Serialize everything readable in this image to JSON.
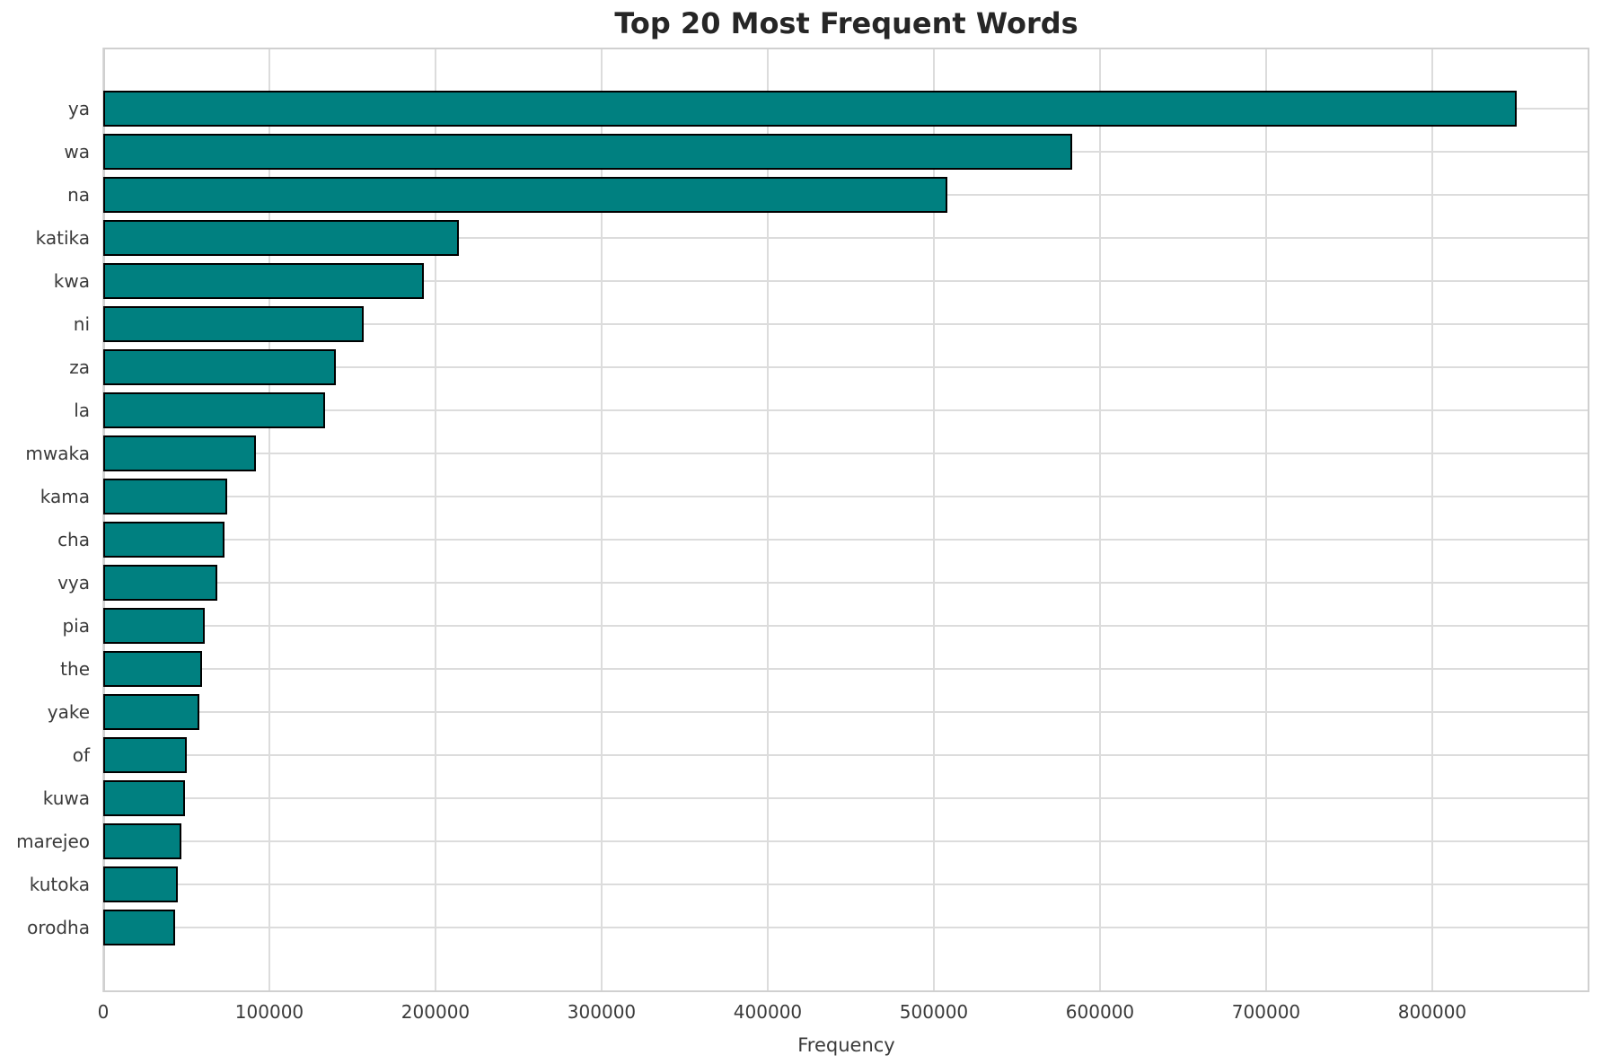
{
  "chart_data": {
    "type": "bar",
    "orientation": "horizontal",
    "title": "Top 20 Most Frequent Words",
    "xlabel": "Frequency",
    "ylabel": "",
    "categories": [
      "ya",
      "wa",
      "na",
      "katika",
      "kwa",
      "ni",
      "za",
      "la",
      "mwaka",
      "kama",
      "cha",
      "vya",
      "pia",
      "the",
      "yake",
      "of",
      "kuwa",
      "marejeo",
      "kutoka",
      "orodha"
    ],
    "values": [
      851000,
      583000,
      508000,
      214000,
      193000,
      157000,
      140000,
      133500,
      92000,
      74500,
      73000,
      68700,
      61000,
      59500,
      58000,
      50300,
      49300,
      47000,
      45000,
      43300
    ],
    "xlim": [
      0,
      894600
    ],
    "xticks": [
      0,
      100000,
      200000,
      300000,
      400000,
      500000,
      600000,
      700000,
      800000
    ],
    "grid": true,
    "legend": false,
    "bar_color": "#008080",
    "bar_edge_color": "#000000",
    "grid_color": "#dcdcdc",
    "spine_color": "#d0d0d0",
    "tick_text_color": "#3a3a3a",
    "title_color": "#262626",
    "background": "#ffffff"
  }
}
